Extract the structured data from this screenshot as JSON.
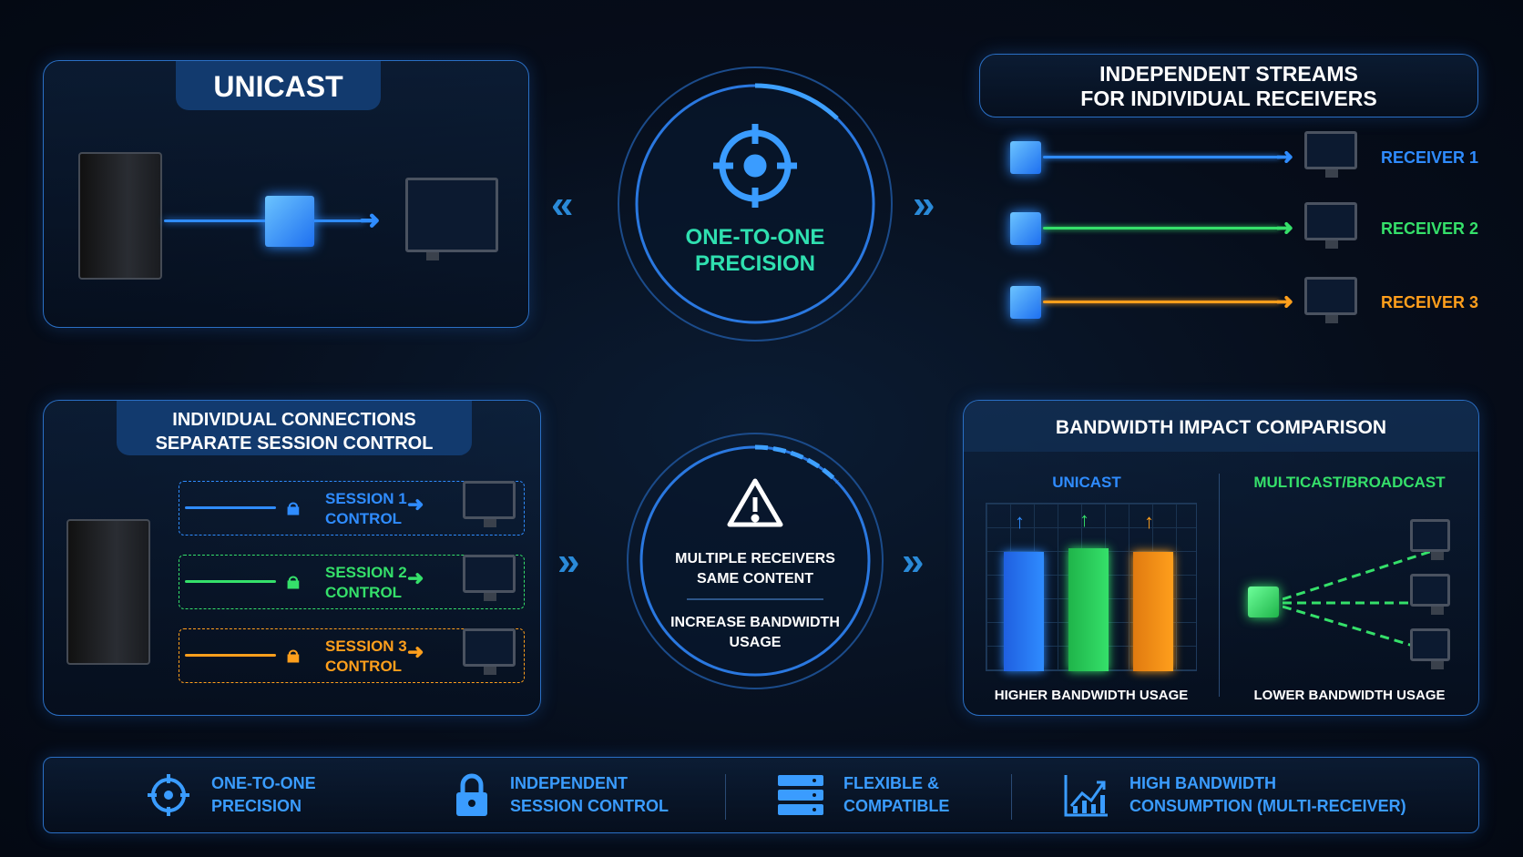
{
  "unicast_panel": {
    "title": "UNICAST"
  },
  "center_top": {
    "label_line1": "ONE-TO-ONE",
    "label_line2": "PRECISION",
    "icon": "crosshair-icon"
  },
  "streams_panel": {
    "title_line1": "INDEPENDENT STREAMS",
    "title_line2": "FOR INDIVIDUAL RECEIVERS",
    "receivers": [
      {
        "label": "RECEIVER 1",
        "color": "#2f8cff"
      },
      {
        "label": "RECEIVER 2",
        "color": "#35e06a"
      },
      {
        "label": "RECEIVER 3",
        "color": "#ff9f1c"
      }
    ]
  },
  "sessions_panel": {
    "title_line1": "INDIVIDUAL CONNECTIONS",
    "title_line2": "SEPARATE SESSION CONTROL",
    "sessions": [
      {
        "line1": "SESSION 1",
        "line2": "CONTROL",
        "color": "#2f8cff"
      },
      {
        "line1": "SESSION 2",
        "line2": "CONTROL",
        "color": "#35e06a"
      },
      {
        "line1": "SESSION 3",
        "line2": "CONTROL",
        "color": "#ff9f1c"
      }
    ]
  },
  "center_bottom": {
    "line1": "MULTIPLE RECEIVERS",
    "line2": "SAME CONTENT",
    "line3": "INCREASE BANDWIDTH",
    "line4": "USAGE",
    "icon": "warning-icon"
  },
  "bandwidth_panel": {
    "title": "BANDWIDTH IMPACT COMPARISON",
    "left_title": "UNICAST",
    "right_title": "MULTICAST/BROADCAST",
    "left_caption": "HIGHER BANDWIDTH USAGE",
    "right_caption": "LOWER BANDWIDTH USAGE"
  },
  "footer": {
    "items": [
      {
        "line1": "ONE-TO-ONE",
        "line2": "PRECISION",
        "icon": "crosshair-icon"
      },
      {
        "line1": "INDEPENDENT",
        "line2": "SESSION CONTROL",
        "icon": "lock-icon"
      },
      {
        "line1": "FLEXIBLE &",
        "line2": "COMPATIBLE",
        "icon": "server-stack-icon"
      },
      {
        "line1": "HIGH BANDWIDTH",
        "line2": "CONSUMPTION (MULTI-RECEIVER)",
        "icon": "chart-up-icon"
      }
    ]
  },
  "colors": {
    "blue": "#2f8cff",
    "green": "#35e06a",
    "orange": "#ff9f1c",
    "teal": "#2fe0b0"
  }
}
